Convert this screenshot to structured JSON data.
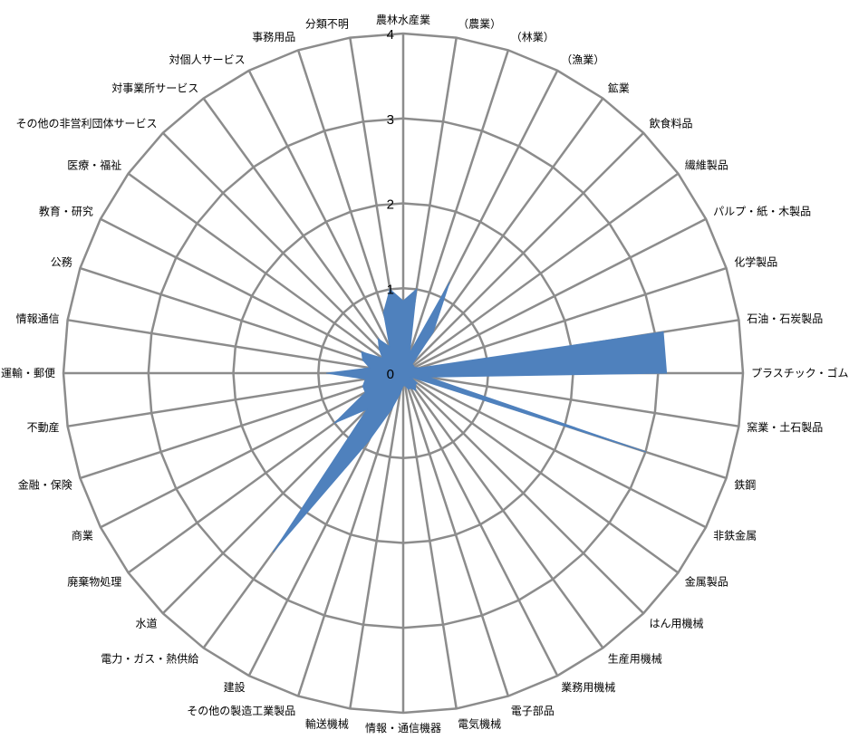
{
  "chart_data": {
    "type": "radar",
    "categories": [
      "農林水産業",
      "（農業）",
      "（林業）",
      "（漁業）",
      "鉱業",
      "飲食料品",
      "繊維製品",
      "パルプ・紙・木製品",
      "化学製品",
      "石油・石炭製品",
      "プラスチック・ゴム",
      "窯業・土石製品",
      "鉄鋼",
      "非鉄金属",
      "金属製品",
      "はん用機械",
      "生産用機械",
      "業務用機械",
      "電子部品",
      "電気機械",
      "情報・通信機器",
      "輸送機械",
      "その他の製造工業製品",
      "建設",
      "電力・ガス・熱供給",
      "水道",
      "廃棄物処理",
      "商業",
      "金融・保険",
      "不動産",
      "運輸・郵便",
      "情報通信",
      "公務",
      "教育・研究",
      "医療・福祉",
      "その他の非営利団体サービス",
      "対事業所サービス",
      "対個人サービス",
      "事務用品",
      "分類不明"
    ],
    "series": [
      {
        "values": [
          0.85,
          1.0,
          0.25,
          1.2,
          0.6,
          0.15,
          0.15,
          0.15,
          0.2,
          3.1,
          3.1,
          0.3,
          3.0,
          0.1,
          0.2,
          0.2,
          0.25,
          0.2,
          0.2,
          0.15,
          0.15,
          0.25,
          0.45,
          0.9,
          2.6,
          0.6,
          1.0,
          0.5,
          0.5,
          0.45,
          0.9,
          0.4,
          0.5,
          0.55,
          0.3,
          0.4,
          0.5,
          0.35,
          0.75,
          1.0
        ],
        "color": "#4f81bd"
      }
    ],
    "ylim": [
      0,
      4
    ],
    "ticks": [
      "0",
      "1",
      "2",
      "3",
      "4"
    ],
    "grid": true
  }
}
